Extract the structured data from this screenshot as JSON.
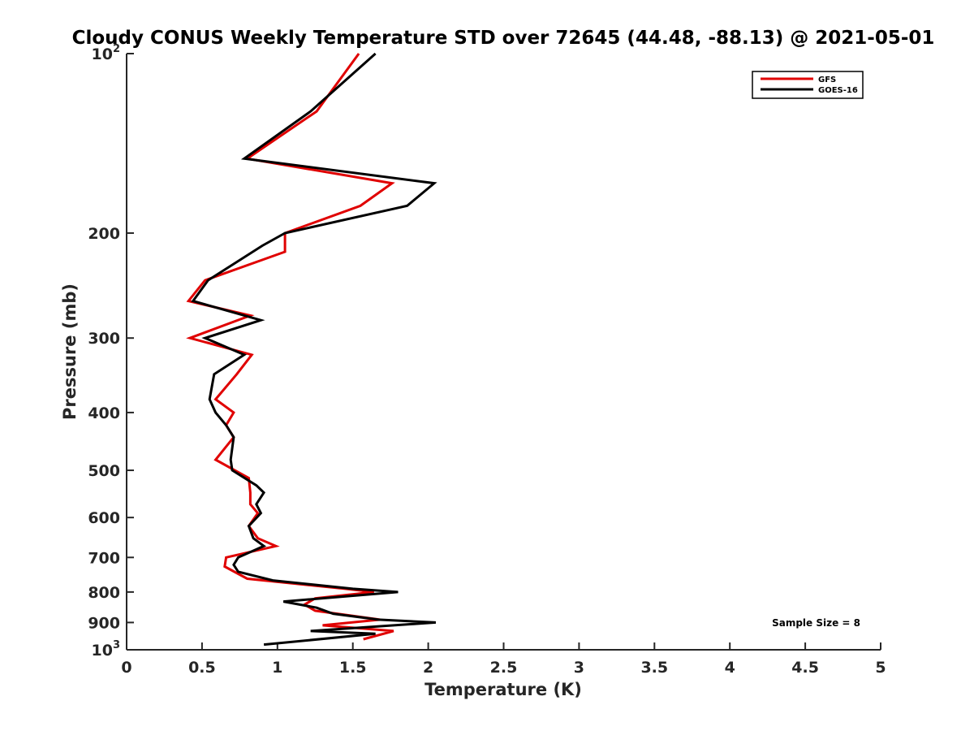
{
  "chart_data": {
    "type": "line",
    "title": "Cloudy CONUS Weekly Temperature STD over 72645 (44.48, -88.13) @ 2021-05-01",
    "xlabel": "Temperature (K)",
    "ylabel": "Pressure (mb)",
    "xlim": [
      0,
      5
    ],
    "ylim": [
      100,
      1000
    ],
    "y_scale": "log",
    "y_reversed": true,
    "grid": false,
    "legend_position": "top-right",
    "x_ticks": [
      "0",
      "0.5",
      "1",
      "1.5",
      "2",
      "2.5",
      "3",
      "3.5",
      "4",
      "4.5",
      "5"
    ],
    "y_ticks": [
      {
        "value": 100,
        "base": "10",
        "exp": "2"
      },
      {
        "value": 200,
        "label": "200"
      },
      {
        "value": 300,
        "label": "300"
      },
      {
        "value": 400,
        "label": "400"
      },
      {
        "value": 500,
        "label": "500"
      },
      {
        "value": 600,
        "label": "600"
      },
      {
        "value": 700,
        "label": "700"
      },
      {
        "value": 800,
        "label": "800"
      },
      {
        "value": 900,
        "label": "900"
      },
      {
        "value": 1000,
        "base": "10",
        "exp": "3"
      }
    ],
    "series": [
      {
        "name": "GFS",
        "color": "#e00000",
        "points": [
          [
            1.54,
            100
          ],
          [
            1.26,
            125
          ],
          [
            0.8,
            150
          ],
          [
            1.76,
            165
          ],
          [
            1.55,
            180
          ],
          [
            1.05,
            200
          ],
          [
            1.05,
            215
          ],
          [
            0.52,
            240
          ],
          [
            0.41,
            260
          ],
          [
            0.82,
            275
          ],
          [
            0.42,
            300
          ],
          [
            0.83,
            320
          ],
          [
            0.73,
            345
          ],
          [
            0.59,
            380
          ],
          [
            0.71,
            400
          ],
          [
            0.66,
            420
          ],
          [
            0.71,
            440
          ],
          [
            0.59,
            480
          ],
          [
            0.81,
            515
          ],
          [
            0.82,
            545
          ],
          [
            0.82,
            570
          ],
          [
            0.87,
            590
          ],
          [
            0.81,
            620
          ],
          [
            0.87,
            650
          ],
          [
            0.99,
            670
          ],
          [
            0.66,
            700
          ],
          [
            0.65,
            725
          ],
          [
            0.8,
            760
          ],
          [
            1.45,
            790
          ],
          [
            1.64,
            800
          ],
          [
            1.25,
            820
          ],
          [
            1.18,
            840
          ],
          [
            1.25,
            860
          ],
          [
            1.68,
            890
          ],
          [
            1.3,
            910
          ],
          [
            1.77,
            930
          ],
          [
            1.57,
            960
          ]
        ]
      },
      {
        "name": "GOES-16",
        "color": "#000000",
        "points": [
          [
            1.65,
            100
          ],
          [
            1.22,
            125
          ],
          [
            0.78,
            150
          ],
          [
            2.04,
            165
          ],
          [
            1.86,
            180
          ],
          [
            1.05,
            200
          ],
          [
            0.9,
            210
          ],
          [
            0.54,
            240
          ],
          [
            0.44,
            260
          ],
          [
            0.89,
            280
          ],
          [
            0.52,
            300
          ],
          [
            0.78,
            320
          ],
          [
            0.58,
            345
          ],
          [
            0.55,
            380
          ],
          [
            0.59,
            400
          ],
          [
            0.66,
            420
          ],
          [
            0.71,
            440
          ],
          [
            0.69,
            480
          ],
          [
            0.7,
            500
          ],
          [
            0.86,
            530
          ],
          [
            0.91,
            545
          ],
          [
            0.86,
            570
          ],
          [
            0.89,
            590
          ],
          [
            0.81,
            620
          ],
          [
            0.84,
            650
          ],
          [
            0.91,
            670
          ],
          [
            0.74,
            700
          ],
          [
            0.71,
            720
          ],
          [
            0.74,
            740
          ],
          [
            0.97,
            765
          ],
          [
            1.5,
            790
          ],
          [
            1.8,
            800
          ],
          [
            1.04,
            830
          ],
          [
            1.26,
            850
          ],
          [
            1.37,
            870
          ],
          [
            1.67,
            890
          ],
          [
            2.05,
            900
          ],
          [
            1.22,
            930
          ],
          [
            1.65,
            940
          ],
          [
            0.91,
            980
          ]
        ]
      }
    ],
    "annotations": [
      "Sample Size = 8"
    ]
  }
}
